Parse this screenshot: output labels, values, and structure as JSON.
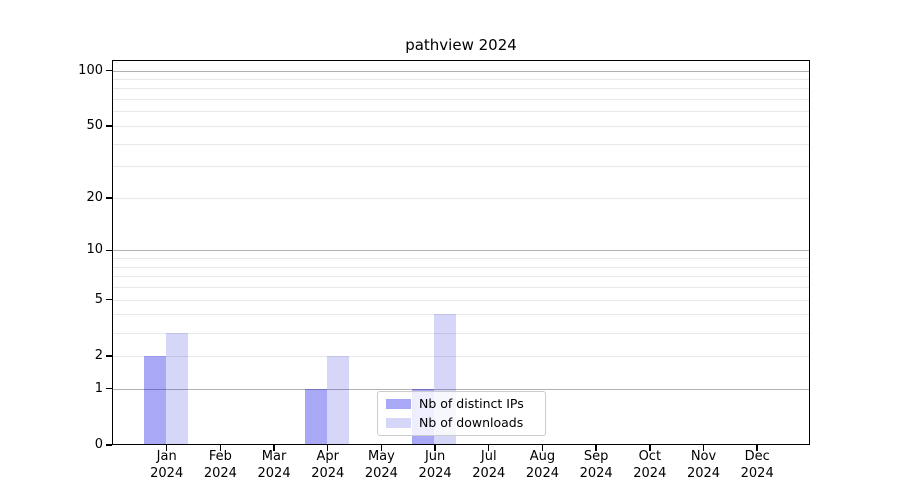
{
  "chart_data": {
    "type": "bar",
    "title": "pathview 2024",
    "categories": [
      "Jan 2024",
      "Feb 2024",
      "Mar 2024",
      "Apr 2024",
      "May 2024",
      "Jun 2024",
      "Jul 2024",
      "Aug 2024",
      "Sep 2024",
      "Oct 2024",
      "Nov 2024",
      "Dec 2024"
    ],
    "month_labels": [
      "Jan",
      "Feb",
      "Mar",
      "Apr",
      "May",
      "Jun",
      "Jul",
      "Aug",
      "Sep",
      "Oct",
      "Nov",
      "Dec"
    ],
    "year_label": "2024",
    "series": [
      {
        "name": "Nb of distinct IPs",
        "color": "rgba(0,0,231,0.34)",
        "values": [
          2,
          0,
          0,
          1,
          0,
          1,
          0,
          0,
          0,
          0,
          0,
          0
        ]
      },
      {
        "name": "Nb of downloads",
        "color": "rgba(0,0,216,0.16)",
        "values": [
          3,
          0,
          0,
          2,
          0,
          4,
          0,
          0,
          0,
          0,
          0,
          0
        ]
      }
    ],
    "xlabel": "",
    "ylabel": "",
    "y_scale": "log1p",
    "ylim": [
      0,
      114
    ],
    "y_tick_values": [
      0,
      1,
      2,
      5,
      10,
      20,
      50,
      100
    ],
    "major_grid_values": [
      1,
      10,
      100
    ],
    "minor_grid_values": [
      2,
      3,
      4,
      5,
      6,
      7,
      8,
      9,
      20,
      30,
      40,
      50,
      60,
      70,
      80,
      90
    ],
    "grid": true,
    "legend_position": "lower center"
  },
  "colors": {
    "major_grid": "#b2b2b2",
    "minor_grid": "#e8e8e8",
    "axis": "#000000",
    "background": "#ffffff",
    "legend_border": "#cccccc"
  }
}
